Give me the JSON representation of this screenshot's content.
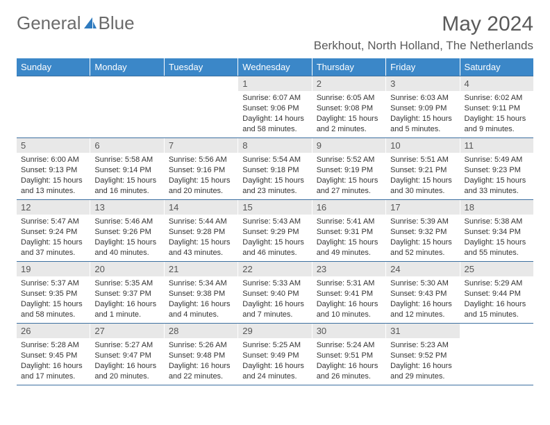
{
  "logo": {
    "text1": "General",
    "text2": "Blue"
  },
  "title": "May 2024",
  "location": "Berkhout, North Holland, The Netherlands",
  "colors": {
    "header_bg": "#3b87c8",
    "header_text": "#ffffff",
    "daynum_bg": "#e8e8e8",
    "daynum_text": "#555555",
    "body_text": "#333333",
    "border": "#3b6fa0",
    "logo_text": "#6b6b6b",
    "logo_blue": "#2f7bbf"
  },
  "weekdays": [
    "Sunday",
    "Monday",
    "Tuesday",
    "Wednesday",
    "Thursday",
    "Friday",
    "Saturday"
  ],
  "weeks": [
    [
      null,
      null,
      null,
      {
        "n": "1",
        "sr": "6:07 AM",
        "ss": "9:06 PM",
        "dl": "14 hours and 58 minutes."
      },
      {
        "n": "2",
        "sr": "6:05 AM",
        "ss": "9:08 PM",
        "dl": "15 hours and 2 minutes."
      },
      {
        "n": "3",
        "sr": "6:03 AM",
        "ss": "9:09 PM",
        "dl": "15 hours and 5 minutes."
      },
      {
        "n": "4",
        "sr": "6:02 AM",
        "ss": "9:11 PM",
        "dl": "15 hours and 9 minutes."
      }
    ],
    [
      {
        "n": "5",
        "sr": "6:00 AM",
        "ss": "9:13 PM",
        "dl": "15 hours and 13 minutes."
      },
      {
        "n": "6",
        "sr": "5:58 AM",
        "ss": "9:14 PM",
        "dl": "15 hours and 16 minutes."
      },
      {
        "n": "7",
        "sr": "5:56 AM",
        "ss": "9:16 PM",
        "dl": "15 hours and 20 minutes."
      },
      {
        "n": "8",
        "sr": "5:54 AM",
        "ss": "9:18 PM",
        "dl": "15 hours and 23 minutes."
      },
      {
        "n": "9",
        "sr": "5:52 AM",
        "ss": "9:19 PM",
        "dl": "15 hours and 27 minutes."
      },
      {
        "n": "10",
        "sr": "5:51 AM",
        "ss": "9:21 PM",
        "dl": "15 hours and 30 minutes."
      },
      {
        "n": "11",
        "sr": "5:49 AM",
        "ss": "9:23 PM",
        "dl": "15 hours and 33 minutes."
      }
    ],
    [
      {
        "n": "12",
        "sr": "5:47 AM",
        "ss": "9:24 PM",
        "dl": "15 hours and 37 minutes."
      },
      {
        "n": "13",
        "sr": "5:46 AM",
        "ss": "9:26 PM",
        "dl": "15 hours and 40 minutes."
      },
      {
        "n": "14",
        "sr": "5:44 AM",
        "ss": "9:28 PM",
        "dl": "15 hours and 43 minutes."
      },
      {
        "n": "15",
        "sr": "5:43 AM",
        "ss": "9:29 PM",
        "dl": "15 hours and 46 minutes."
      },
      {
        "n": "16",
        "sr": "5:41 AM",
        "ss": "9:31 PM",
        "dl": "15 hours and 49 minutes."
      },
      {
        "n": "17",
        "sr": "5:39 AM",
        "ss": "9:32 PM",
        "dl": "15 hours and 52 minutes."
      },
      {
        "n": "18",
        "sr": "5:38 AM",
        "ss": "9:34 PM",
        "dl": "15 hours and 55 minutes."
      }
    ],
    [
      {
        "n": "19",
        "sr": "5:37 AM",
        "ss": "9:35 PM",
        "dl": "15 hours and 58 minutes."
      },
      {
        "n": "20",
        "sr": "5:35 AM",
        "ss": "9:37 PM",
        "dl": "16 hours and 1 minute."
      },
      {
        "n": "21",
        "sr": "5:34 AM",
        "ss": "9:38 PM",
        "dl": "16 hours and 4 minutes."
      },
      {
        "n": "22",
        "sr": "5:33 AM",
        "ss": "9:40 PM",
        "dl": "16 hours and 7 minutes."
      },
      {
        "n": "23",
        "sr": "5:31 AM",
        "ss": "9:41 PM",
        "dl": "16 hours and 10 minutes."
      },
      {
        "n": "24",
        "sr": "5:30 AM",
        "ss": "9:43 PM",
        "dl": "16 hours and 12 minutes."
      },
      {
        "n": "25",
        "sr": "5:29 AM",
        "ss": "9:44 PM",
        "dl": "16 hours and 15 minutes."
      }
    ],
    [
      {
        "n": "26",
        "sr": "5:28 AM",
        "ss": "9:45 PM",
        "dl": "16 hours and 17 minutes."
      },
      {
        "n": "27",
        "sr": "5:27 AM",
        "ss": "9:47 PM",
        "dl": "16 hours and 20 minutes."
      },
      {
        "n": "28",
        "sr": "5:26 AM",
        "ss": "9:48 PM",
        "dl": "16 hours and 22 minutes."
      },
      {
        "n": "29",
        "sr": "5:25 AM",
        "ss": "9:49 PM",
        "dl": "16 hours and 24 minutes."
      },
      {
        "n": "30",
        "sr": "5:24 AM",
        "ss": "9:51 PM",
        "dl": "16 hours and 26 minutes."
      },
      {
        "n": "31",
        "sr": "5:23 AM",
        "ss": "9:52 PM",
        "dl": "16 hours and 29 minutes."
      },
      null
    ]
  ],
  "labels": {
    "sunrise": "Sunrise:",
    "sunset": "Sunset:",
    "daylight": "Daylight:"
  }
}
